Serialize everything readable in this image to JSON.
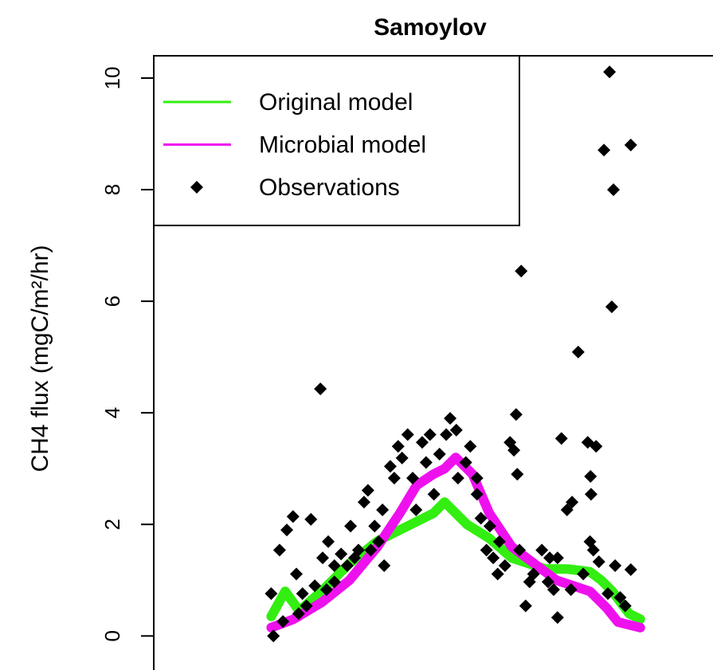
{
  "chart_data": {
    "type": "line",
    "title": "Samoylov",
    "y_label": "CH4 flux (mgC/m²/hr)",
    "xlim": [
      0,
      100
    ],
    "ylim": [
      -0.61,
      10.4
    ],
    "yticks": [
      0,
      2,
      4,
      6,
      8,
      10
    ],
    "legend": "top-left",
    "series": [
      {
        "name": "Original model",
        "color": "#33ee11",
        "kind": "line",
        "x": [
          21,
          23.5,
          26,
          30,
          35,
          40,
          45,
          50,
          52,
          54,
          56,
          60,
          64,
          70,
          74,
          78,
          80,
          82,
          85,
          87
        ],
        "values": [
          0.35,
          0.8,
          0.45,
          0.8,
          1.3,
          1.7,
          1.95,
          2.2,
          2.4,
          2.2,
          2.0,
          1.75,
          1.4,
          1.2,
          1.2,
          1.15,
          1.0,
          0.8,
          0.4,
          0.3
        ]
      },
      {
        "name": "Microbial model",
        "color": "#ee11ee",
        "kind": "line",
        "x": [
          21,
          25,
          30,
          35,
          40,
          44,
          47,
          50,
          52,
          54,
          57,
          60,
          64,
          68,
          72,
          78,
          81,
          83,
          87
        ],
        "values": [
          0.15,
          0.3,
          0.6,
          1.0,
          1.6,
          2.2,
          2.7,
          2.9,
          3.0,
          3.2,
          2.9,
          2.2,
          1.6,
          1.3,
          1.0,
          0.8,
          0.5,
          0.25,
          0.15
        ]
      },
      {
        "name": "Observations",
        "color": "#000000",
        "kind": "scatter",
        "x": [
          21.4,
          21.0,
          22.5,
          24.9,
          28.1,
          23.8,
          25.5,
          26.6,
          28.8,
          29.8,
          30.2,
          31.2,
          32.3,
          33.5,
          34.6,
          35.2,
          36.6,
          37.6,
          38.3,
          39.5,
          40.2,
          41.2,
          42.3,
          43.0,
          43.7,
          44.4,
          45.4,
          46.3,
          46.9,
          48.0,
          48.7,
          50.1,
          51.1,
          52.3,
          53.0,
          54.4,
          55.8,
          56.6,
          57.8,
          58.5,
          59.5,
          60.7,
          61.8,
          62.8,
          63.7,
          64.4,
          65.0,
          64.8,
          65.7,
          65.4,
          66.5,
          67.2,
          67.9,
          69.4,
          70.5,
          71.5,
          72.2,
          72.9,
          73.9,
          74.8,
          75.9,
          76.8,
          77.6,
          78.1,
          78.2,
          79.1,
          78.0,
          78.6,
          79.6,
          80.5,
          81.5,
          81.9,
          82.2,
          82.5,
          83.4,
          84.3,
          85.3,
          85.3,
          23.1,
          25.9,
          27.3,
          30.9,
          32.3,
          35.9,
          38.8,
          40.9,
          49.4,
          54.1,
          57.8,
          60.1,
          61.5,
          70.8,
          72.2,
          74.6,
          81.2
        ],
        "values": [
          0,
          0.76,
          1.54,
          2.14,
          2.09,
          1.9,
          1.11,
          0.76,
          0.9,
          4.43,
          1.4,
          1.69,
          1.26,
          1.47,
          1.26,
          1.97,
          1.54,
          2.4,
          2.61,
          1.97,
          1.69,
          1.26,
          3.04,
          2.83,
          3.4,
          3.19,
          3.61,
          2.83,
          2.26,
          3.47,
          3.11,
          2.54,
          3.26,
          3.61,
          3.9,
          2.83,
          3.11,
          3.4,
          2.54,
          2.11,
          1.54,
          1.4,
          1.69,
          1.26,
          3.47,
          3.33,
          2.9,
          3.97,
          6.54,
          1.54,
          0.54,
          0.97,
          1.11,
          1.54,
          0.97,
          0.83,
          0.33,
          3.54,
          2.26,
          2.4,
          5.09,
          1.11,
          3.47,
          2.86,
          2.54,
          3.4,
          1.69,
          1.54,
          1.33,
          8.71,
          10.11,
          5.9,
          8.0,
          1.26,
          0.69,
          0.54,
          1.19,
          8.8,
          0.26,
          0.4,
          0.54,
          0.83,
          0.97,
          1.4,
          1.54,
          2.26,
          3.61,
          3.69,
          2.83,
          1.97,
          1.11,
          1.4,
          1.4,
          0.83,
          0.76
        ]
      }
    ]
  }
}
